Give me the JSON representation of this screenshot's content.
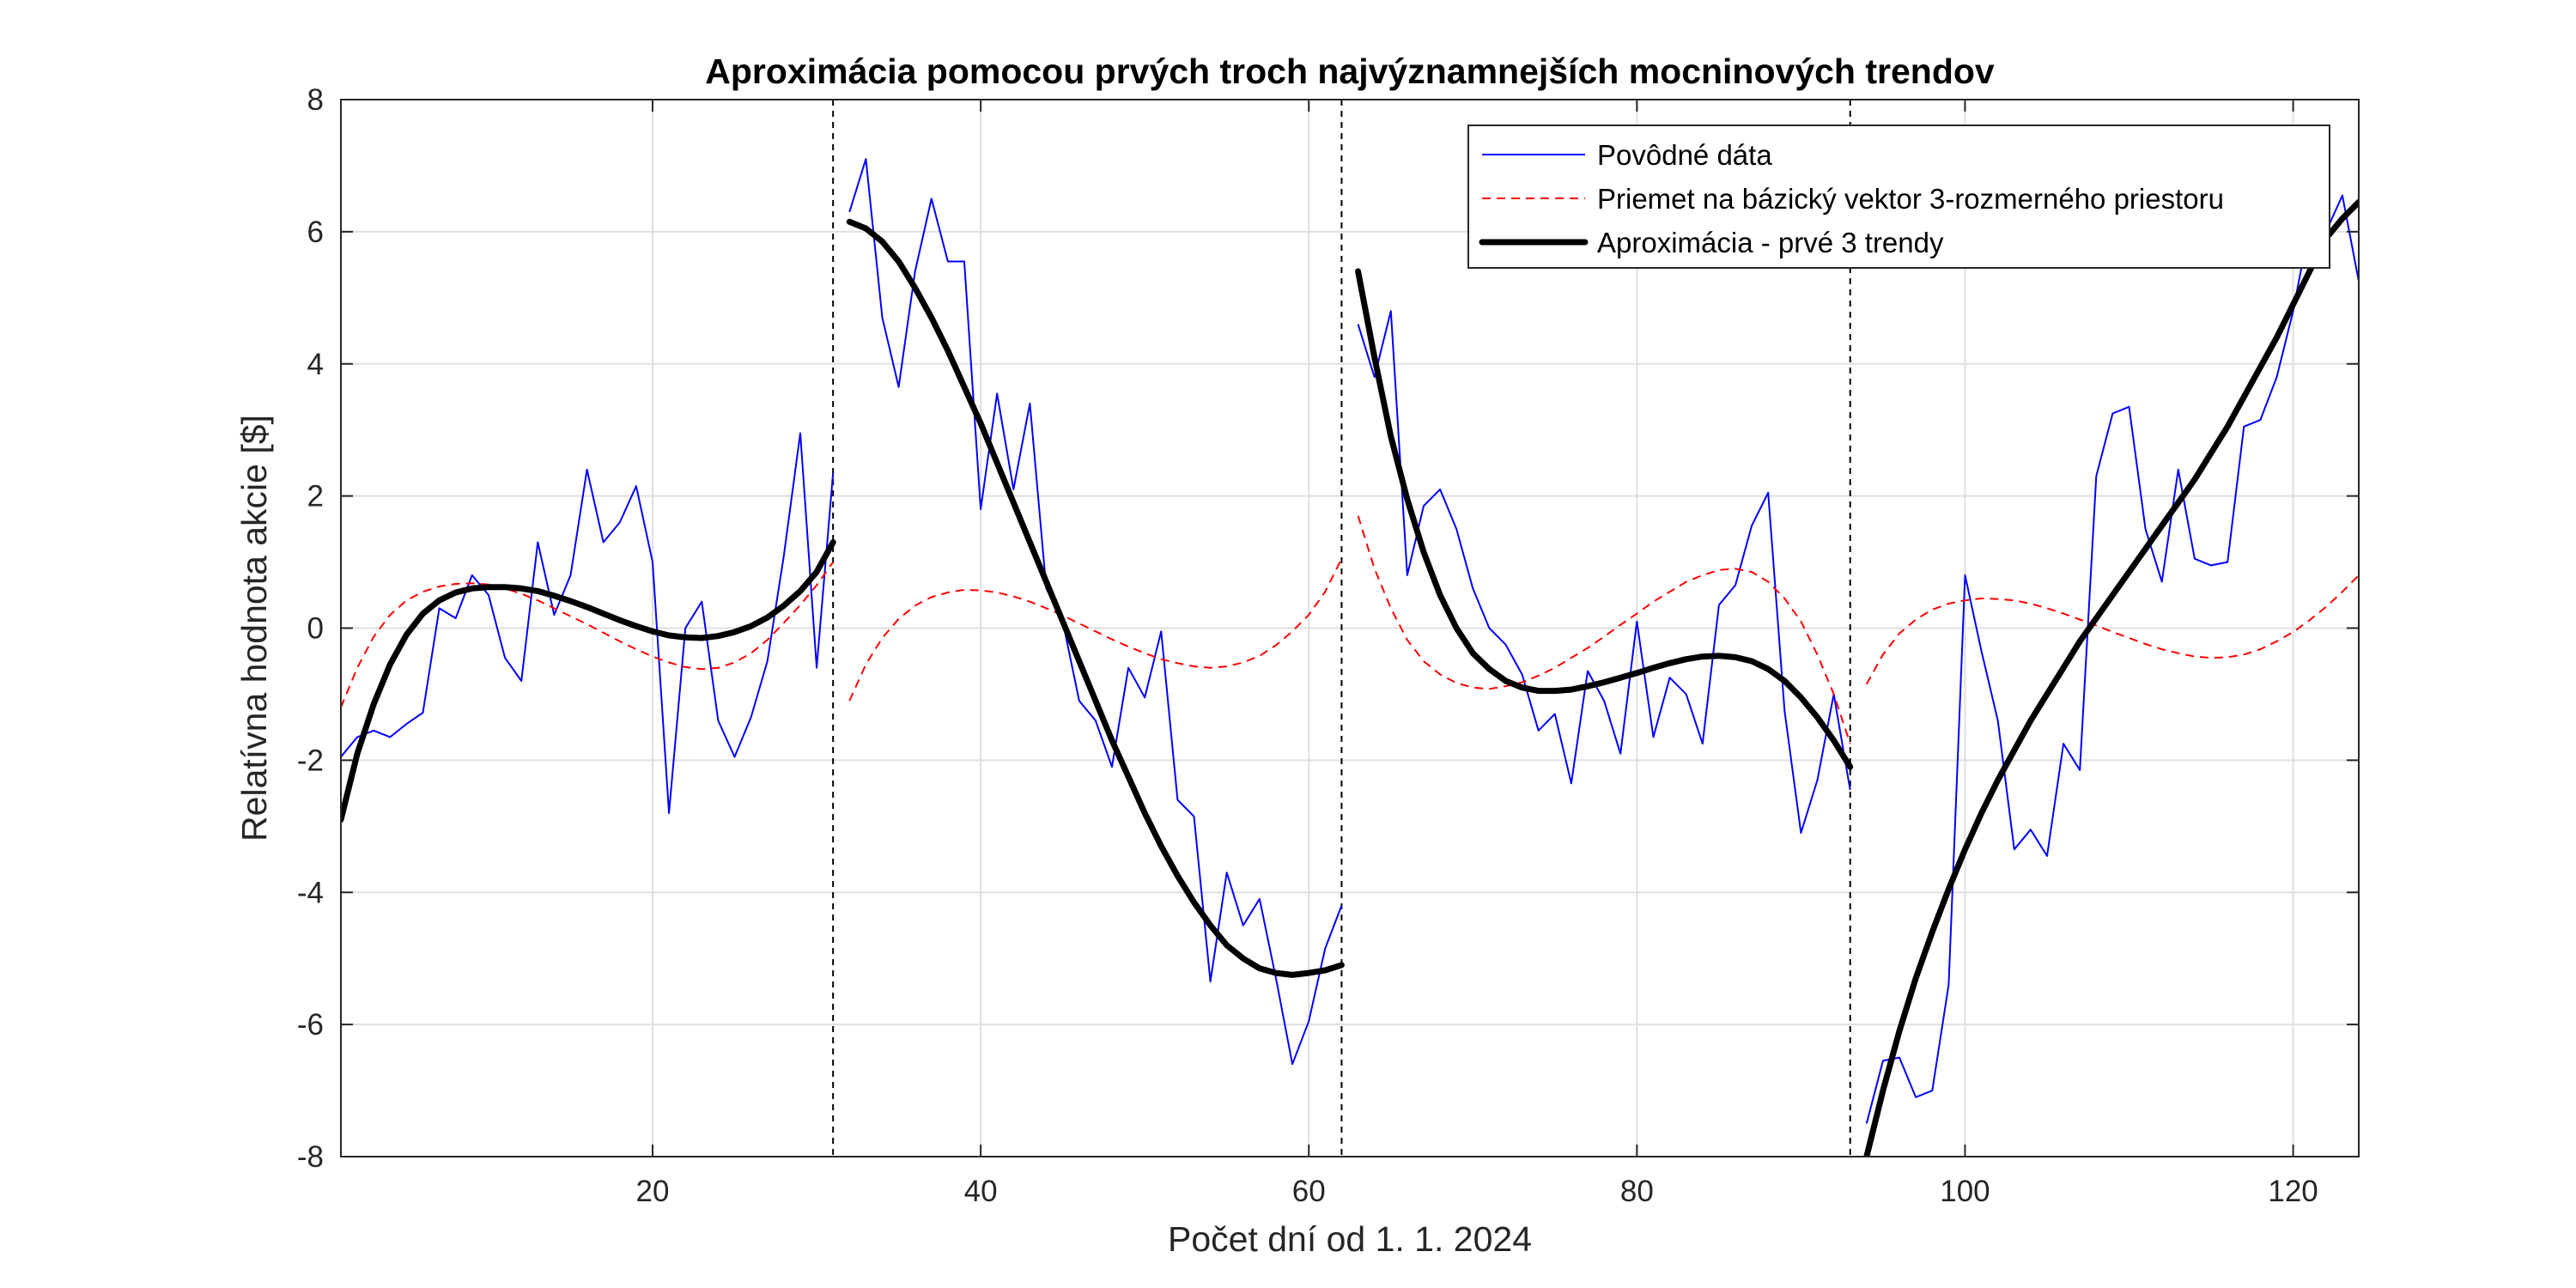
{
  "chart_data": {
    "type": "line",
    "title": "Aproximácia pomocou prvých troch najvýznamnejších mocninových trendov",
    "xlabel": "Počet dní od 1. 1. 2024",
    "ylabel": "Relatívna hodnota akcie [$]",
    "xlim": [
      1,
      124
    ],
    "ylim": [
      -8,
      8
    ],
    "xticks": [
      20,
      40,
      60,
      80,
      100,
      120
    ],
    "yticks": [
      -8,
      -6,
      -4,
      -2,
      0,
      2,
      4,
      6,
      8
    ],
    "xtick_labels": [
      "20",
      "40",
      "60",
      "80",
      "100",
      "120"
    ],
    "ytick_labels": [
      "-8",
      "-6",
      "-4",
      "-2",
      "0",
      "2",
      "4",
      "6",
      "8"
    ],
    "grid": true,
    "legend_position": "top-right",
    "segment_boundaries": [
      31,
      62,
      93
    ],
    "colors": {
      "original": "#0000ff",
      "projection": "#ff0000",
      "approximation": "#000000",
      "boundary": "#000000"
    },
    "series": [
      {
        "name": "Povôdné dáta",
        "style": "solid-thin",
        "segments": [
          {
            "x": [
              1,
              2,
              3,
              4,
              5,
              6,
              7,
              8,
              9,
              10,
              11,
              12,
              13,
              14,
              15,
              16,
              17,
              18,
              19,
              20,
              21,
              22,
              23,
              24,
              25,
              26,
              27,
              28,
              29,
              30,
              31
            ],
            "y": [
              -1.95,
              -1.65,
              -1.55,
              -1.65,
              -1.45,
              -1.28,
              0.3,
              0.15,
              0.8,
              0.5,
              -0.45,
              -0.8,
              1.3,
              0.2,
              0.8,
              2.4,
              1.3,
              1.6,
              2.15,
              1.0,
              -2.8,
              0.0,
              0.4,
              -1.4,
              -1.95,
              -1.35,
              -0.5,
              1.1,
              2.95,
              -0.6,
              2.35
            ]
          },
          {
            "x": [
              32,
              33,
              34,
              35,
              36,
              37,
              38,
              39,
              40,
              41,
              42,
              43,
              44,
              45,
              46,
              47,
              48,
              49,
              50,
              51,
              52,
              53,
              54,
              55,
              56,
              57,
              58,
              59,
              60,
              61,
              62
            ],
            "y": [
              6.3,
              7.1,
              4.7,
              3.65,
              5.4,
              6.5,
              5.55,
              5.55,
              1.8,
              3.55,
              2.1,
              3.4,
              0.6,
              0.1,
              -1.1,
              -1.4,
              -2.1,
              -0.6,
              -1.05,
              -0.05,
              -2.6,
              -2.85,
              -5.35,
              -3.7,
              -4.5,
              -4.1,
              -5.3,
              -6.6,
              -5.95,
              -4.85,
              -4.2
            ]
          },
          {
            "x": [
              63,
              64,
              65,
              66,
              67,
              68,
              69,
              70,
              71,
              72,
              73,
              74,
              75,
              76,
              77,
              78,
              79,
              80,
              81,
              82,
              83,
              84,
              85,
              86,
              87,
              88,
              89,
              90,
              91,
              92,
              93
            ],
            "y": [
              4.6,
              3.8,
              4.8,
              0.8,
              1.85,
              2.1,
              1.5,
              0.6,
              0.0,
              -0.25,
              -0.7,
              -1.55,
              -1.3,
              -2.35,
              -0.65,
              -1.1,
              -1.9,
              0.1,
              -1.65,
              -0.75,
              -1.0,
              -1.75,
              0.35,
              0.65,
              1.55,
              2.05,
              -1.25,
              -3.1,
              -2.3,
              -1.0,
              -2.45
            ]
          },
          {
            "x": [
              94,
              95,
              96,
              97,
              98,
              99,
              100,
              101,
              102,
              103,
              104,
              105,
              106,
              107,
              108,
              109,
              110,
              111,
              112,
              113,
              114,
              115,
              116,
              117,
              118,
              119,
              120,
              121,
              122,
              123,
              124
            ],
            "y": [
              -7.5,
              -6.55,
              -6.5,
              -7.1,
              -7.0,
              -5.4,
              0.8,
              -0.35,
              -1.4,
              -3.35,
              -3.05,
              -3.45,
              -1.75,
              -2.15,
              2.3,
              3.25,
              3.35,
              1.5,
              0.7,
              2.4,
              1.05,
              0.95,
              1.0,
              3.05,
              3.15,
              3.8,
              4.8,
              6.1,
              6.0,
              6.55,
              5.25
            ]
          }
        ]
      },
      {
        "name": "Priemet na bázický vektor 3-rozmerného priestoru",
        "style": "dashed",
        "segments": [
          {
            "x": [
              1,
              2,
              3,
              4,
              5,
              6,
              7,
              8,
              9,
              10,
              11,
              12,
              13,
              14,
              15,
              16,
              17,
              18,
              19,
              20,
              21,
              22,
              23,
              24,
              25,
              26,
              27,
              28,
              29,
              30,
              31
            ],
            "y": [
              -1.2,
              -0.6,
              -0.13,
              0.2,
              0.42,
              0.55,
              0.63,
              0.67,
              0.68,
              0.66,
              0.6,
              0.52,
              0.42,
              0.3,
              0.18,
              0.06,
              -0.07,
              -0.2,
              -0.32,
              -0.43,
              -0.52,
              -0.59,
              -0.62,
              -0.6,
              -0.52,
              -0.38,
              -0.18,
              0.08,
              0.35,
              0.65,
              1.0
            ]
          },
          {
            "x": [
              32,
              33,
              34,
              35,
              36,
              37,
              38,
              39,
              40,
              41,
              42,
              43,
              44,
              45,
              46,
              47,
              48,
              49,
              50,
              51,
              52,
              53,
              54,
              55,
              56,
              57,
              58,
              59,
              60,
              61,
              62
            ],
            "y": [
              -1.1,
              -0.55,
              -0.15,
              0.14,
              0.34,
              0.47,
              0.54,
              0.58,
              0.57,
              0.54,
              0.48,
              0.4,
              0.3,
              0.19,
              0.07,
              -0.05,
              -0.17,
              -0.28,
              -0.38,
              -0.47,
              -0.53,
              -0.58,
              -0.6,
              -0.58,
              -0.52,
              -0.42,
              -0.26,
              -0.05,
              0.2,
              0.55,
              1.05
            ]
          },
          {
            "x": [
              63,
              64,
              65,
              66,
              67,
              68,
              69,
              70,
              71,
              72,
              73,
              74,
              75,
              76,
              77,
              78,
              79,
              80,
              81,
              82,
              83,
              84,
              85,
              86,
              87,
              88,
              89,
              90,
              91,
              92,
              93
            ],
            "y": [
              1.7,
              0.9,
              0.3,
              -0.18,
              -0.5,
              -0.7,
              -0.83,
              -0.9,
              -0.92,
              -0.88,
              -0.82,
              -0.72,
              -0.6,
              -0.45,
              -0.3,
              -0.13,
              0.05,
              0.22,
              0.4,
              0.55,
              0.7,
              0.8,
              0.88,
              0.9,
              0.85,
              0.7,
              0.45,
              0.1,
              -0.4,
              -1.0,
              -1.75
            ]
          },
          {
            "x": [
              94,
              95,
              96,
              97,
              98,
              99,
              100,
              101,
              102,
              103,
              104,
              105,
              106,
              107,
              108,
              109,
              110,
              111,
              112,
              113,
              114,
              115,
              116,
              117,
              118,
              119,
              120,
              121,
              122,
              123,
              124
            ],
            "y": [
              -0.85,
              -0.4,
              -0.08,
              0.13,
              0.28,
              0.37,
              0.42,
              0.45,
              0.44,
              0.42,
              0.37,
              0.3,
              0.22,
              0.13,
              0.04,
              -0.06,
              -0.15,
              -0.24,
              -0.32,
              -0.38,
              -0.43,
              -0.45,
              -0.44,
              -0.4,
              -0.32,
              -0.2,
              -0.06,
              0.12,
              0.32,
              0.55,
              0.8
            ]
          }
        ]
      },
      {
        "name": "Aproximácia - prvé 3 trendy",
        "style": "solid-thick",
        "segments": [
          {
            "x": [
              1,
              2,
              3,
              4,
              5,
              6,
              7,
              8,
              9,
              10,
              11,
              12,
              13,
              14,
              15,
              16,
              17,
              18,
              19,
              20,
              21,
              22,
              23,
              24,
              25,
              26,
              27,
              28,
              29,
              30,
              31
            ],
            "y": [
              -2.9,
              -1.9,
              -1.15,
              -0.55,
              -0.1,
              0.22,
              0.42,
              0.54,
              0.6,
              0.62,
              0.62,
              0.6,
              0.56,
              0.49,
              0.41,
              0.32,
              0.22,
              0.12,
              0.03,
              -0.05,
              -0.11,
              -0.14,
              -0.15,
              -0.12,
              -0.06,
              0.03,
              0.16,
              0.34,
              0.56,
              0.85,
              1.3
            ]
          },
          {
            "x": [
              32,
              33,
              34,
              35,
              36,
              37,
              38,
              39,
              40,
              41,
              42,
              43,
              44,
              45,
              46,
              47,
              48,
              49,
              50,
              51,
              52,
              53,
              54,
              55,
              56,
              57,
              58,
              59,
              60,
              61,
              62
            ],
            "y": [
              6.15,
              6.05,
              5.85,
              5.55,
              5.15,
              4.7,
              4.2,
              3.65,
              3.1,
              2.5,
              1.9,
              1.3,
              0.7,
              0.1,
              -0.5,
              -1.1,
              -1.7,
              -2.25,
              -2.8,
              -3.3,
              -3.75,
              -4.15,
              -4.5,
              -4.8,
              -5.0,
              -5.15,
              -5.22,
              -5.25,
              -5.22,
              -5.18,
              -5.1
            ]
          },
          {
            "x": [
              63,
              64,
              65,
              66,
              67,
              68,
              69,
              70,
              71,
              72,
              73,
              74,
              75,
              76,
              77,
              78,
              79,
              80,
              81,
              82,
              83,
              84,
              85,
              86,
              87,
              88,
              89,
              90,
              91,
              92,
              93
            ],
            "y": [
              5.4,
              4.1,
              2.9,
              1.95,
              1.15,
              0.5,
              0.0,
              -0.38,
              -0.62,
              -0.8,
              -0.9,
              -0.95,
              -0.95,
              -0.93,
              -0.88,
              -0.82,
              -0.75,
              -0.68,
              -0.6,
              -0.53,
              -0.47,
              -0.43,
              -0.42,
              -0.44,
              -0.5,
              -0.62,
              -0.8,
              -1.05,
              -1.35,
              -1.7,
              -2.1
            ]
          },
          {
            "x": [
              94,
              95,
              96,
              97,
              98,
              99,
              100,
              101,
              102,
              103,
              104,
              105,
              106,
              107,
              108,
              109,
              110,
              111,
              112,
              113,
              114,
              115,
              116,
              117,
              118,
              119,
              120,
              121,
              122,
              123,
              124
            ],
            "y": [
              -8.0,
              -7.0,
              -6.1,
              -5.3,
              -4.6,
              -3.95,
              -3.35,
              -2.8,
              -2.3,
              -1.85,
              -1.4,
              -1.0,
              -0.6,
              -0.2,
              0.15,
              0.5,
              0.85,
              1.2,
              1.55,
              1.9,
              2.25,
              2.65,
              3.05,
              3.5,
              3.95,
              4.4,
              4.9,
              5.4,
              5.9,
              6.2,
              6.45
            ]
          }
        ]
      }
    ]
  }
}
